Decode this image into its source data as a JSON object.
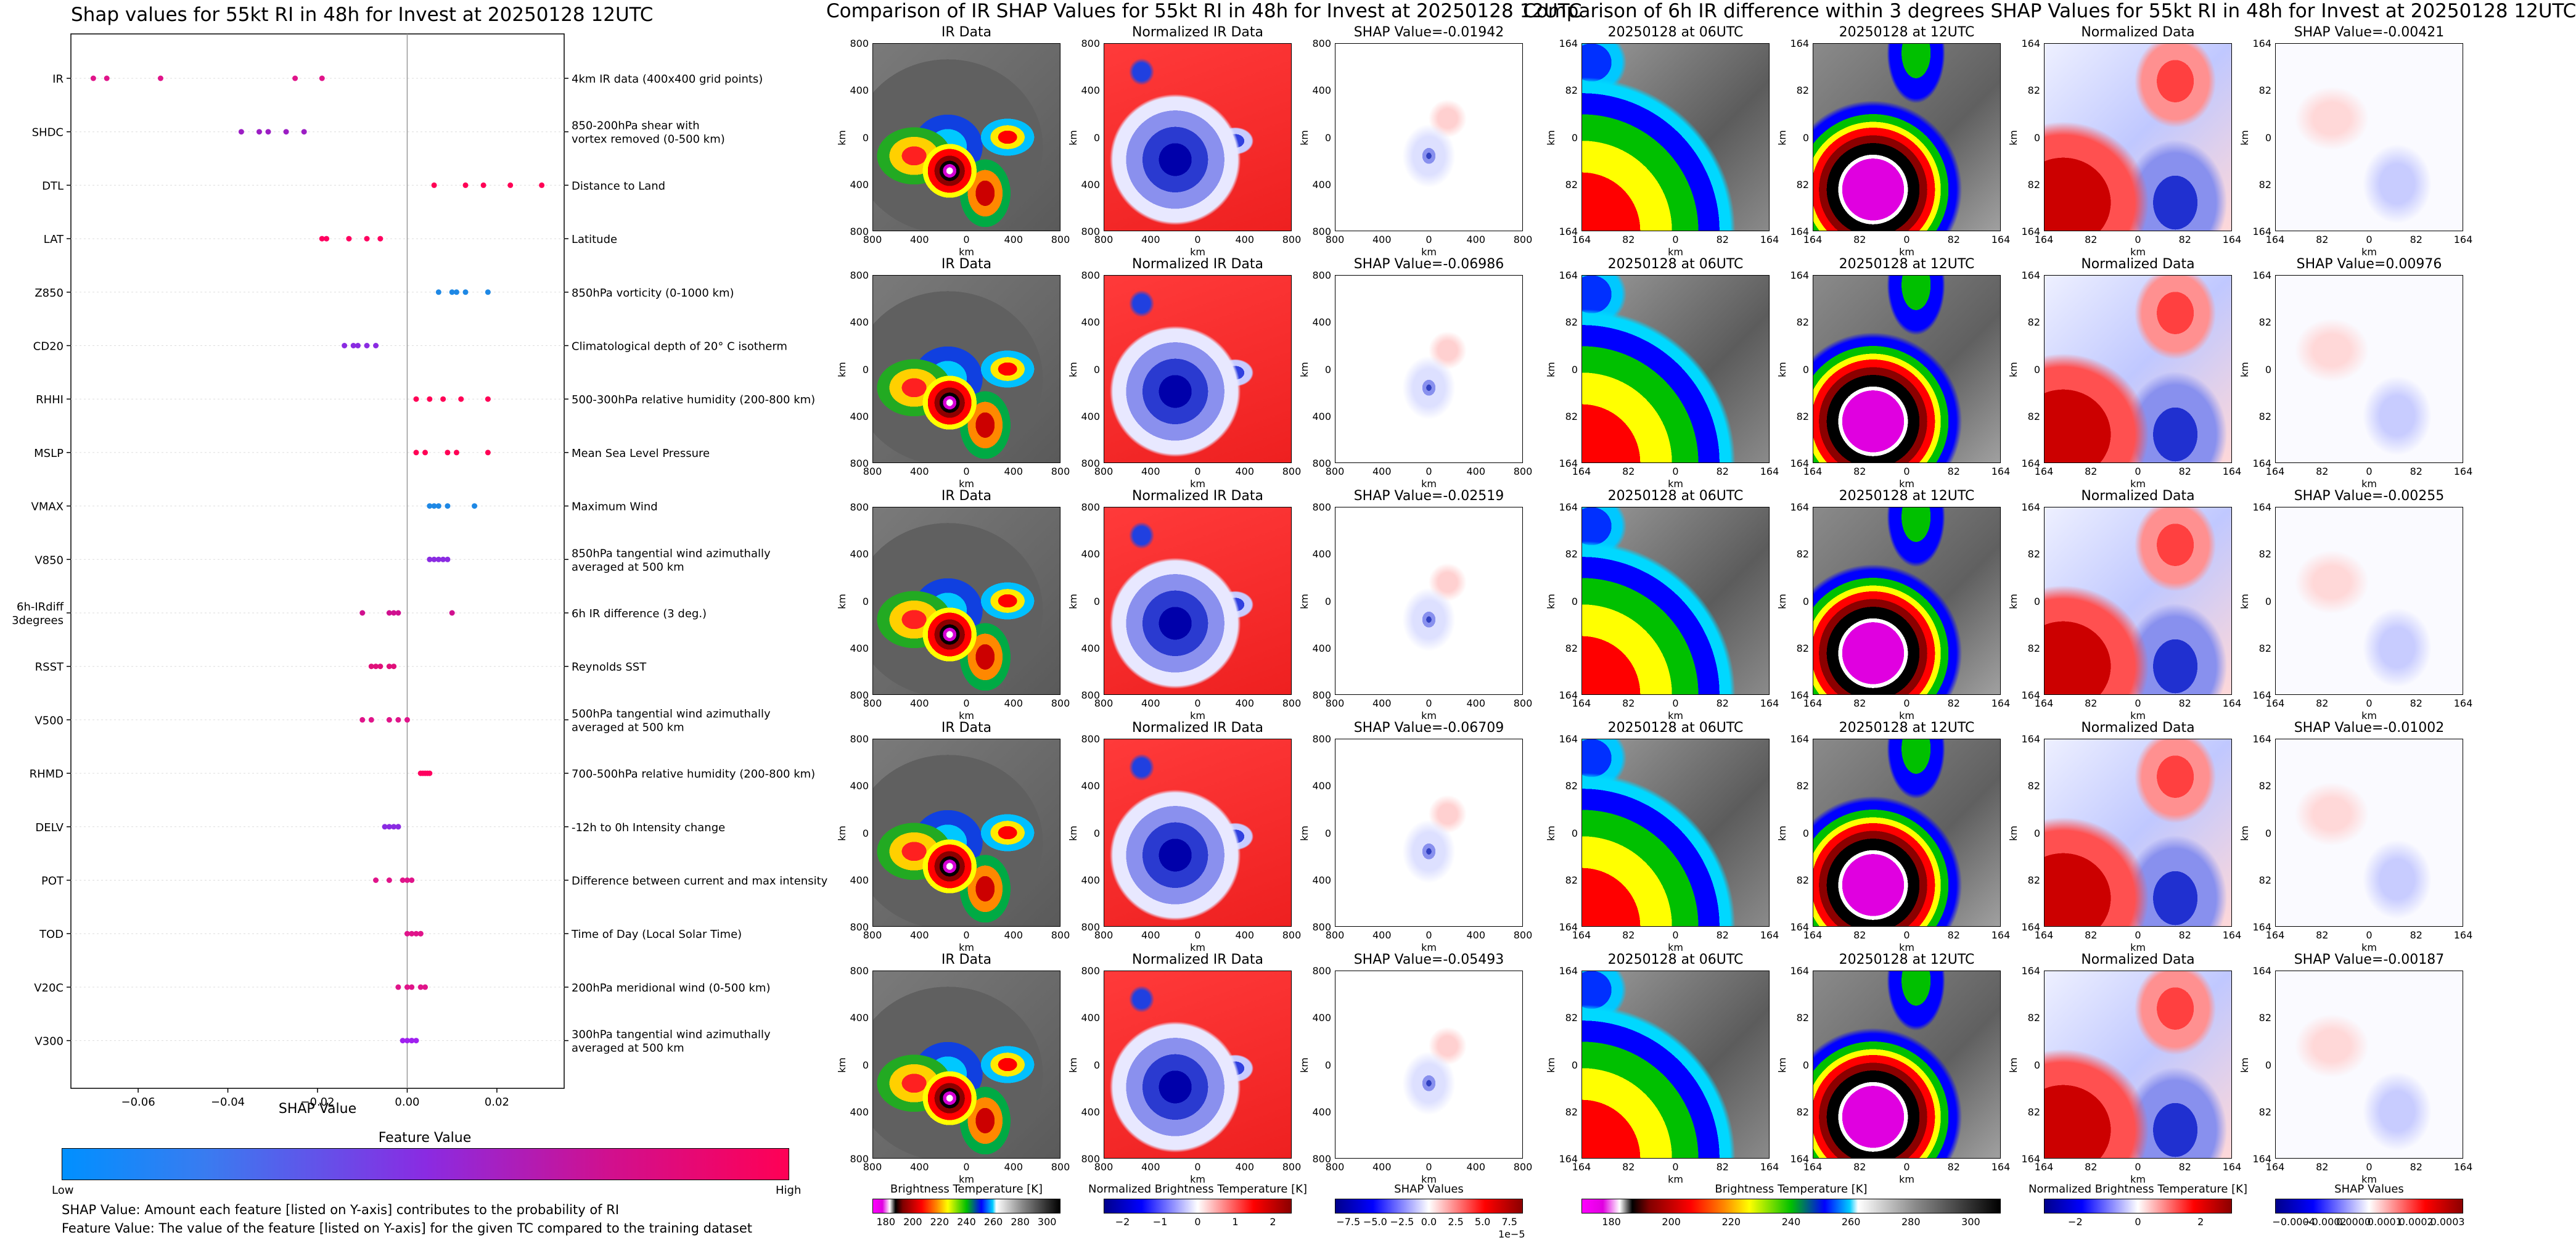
{
  "left_chart": {
    "title": "Shap values for 55kt RI in 48h for Invest at 20250128 12UTC",
    "xlabel": "SHAP Value",
    "colorbar_title": "Feature Value",
    "colorbar_low": "Low",
    "colorbar_high": "High",
    "note1": "SHAP Value: Amount each feature [listed on Y-axis] contributes to the probability of RI",
    "note2": "Feature Value: The value of the feature [listed on Y-axis] for the given TC compared to the training dataset"
  },
  "chart_data": {
    "type": "scatter",
    "title": "Shap values for 55kt RI in 48h for Invest at 20250128 12UTC",
    "xlabel": "SHAP Value",
    "xlim": [
      -0.075,
      0.035
    ],
    "xticks": [
      -0.06,
      -0.04,
      -0.02,
      0.0,
      0.02
    ],
    "xtick_labels": [
      "−0.06",
      "−0.04",
      "−0.02",
      "0.00",
      "0.02"
    ],
    "colors": {
      "low": "#1e88e5",
      "mid": "#a020f0",
      "high": "#ff0055"
    },
    "features": [
      {
        "name": "IR",
        "desc": "4km IR data (400x400 grid points)",
        "shap": [
          -0.07,
          -0.067,
          -0.055,
          -0.025,
          -0.019
        ],
        "colors": [
          "#e0148a",
          "#e0148a",
          "#e0148a",
          "#e0148a",
          "#e0148a"
        ]
      },
      {
        "name": "SHDC",
        "desc": "850-200hPa shear with\nvortex removed (0-500 km)",
        "shap": [
          -0.037,
          -0.033,
          -0.031,
          -0.027,
          -0.023
        ],
        "colors": [
          "#9c1ec4",
          "#9c1ec4",
          "#9c1ec4",
          "#9c1ec4",
          "#9c1ec4"
        ]
      },
      {
        "name": "DTL",
        "desc": "Distance to Land",
        "shap": [
          0.006,
          0.013,
          0.017,
          0.023,
          0.03
        ],
        "colors": [
          "#ff0055",
          "#ff0055",
          "#ff0055",
          "#ff0055",
          "#ff0055"
        ]
      },
      {
        "name": "LAT",
        "desc": "Latitude",
        "shap": [
          -0.019,
          -0.018,
          -0.013,
          -0.009,
          -0.006
        ],
        "colors": [
          "#ff0060",
          "#ff0060",
          "#ff0060",
          "#ff0060",
          "#ff0060"
        ]
      },
      {
        "name": "Z850",
        "desc": "850hPa vorticity (0-1000 km)",
        "shap": [
          0.007,
          0.01,
          0.011,
          0.013,
          0.018
        ],
        "colors": [
          "#1e88e5",
          "#1e88e5",
          "#1e88e5",
          "#1e88e5",
          "#1e88e5"
        ]
      },
      {
        "name": "CD20",
        "desc": "Climatological depth of 20° C isotherm",
        "shap": [
          -0.014,
          -0.012,
          -0.011,
          -0.009,
          -0.007
        ],
        "colors": [
          "#8a2be2",
          "#8a2be2",
          "#8a2be2",
          "#8a2be2",
          "#8a2be2"
        ]
      },
      {
        "name": "RHHI",
        "desc": "500-300hPa relative humidity (200-800 km)",
        "shap": [
          0.002,
          0.005,
          0.008,
          0.012,
          0.018
        ],
        "colors": [
          "#ff0055",
          "#ff0055",
          "#ff0055",
          "#ff0055",
          "#ff0055"
        ]
      },
      {
        "name": "MSLP",
        "desc": "Mean Sea Level Pressure",
        "shap": [
          0.002,
          0.004,
          0.009,
          0.011,
          0.018
        ],
        "colors": [
          "#ff0055",
          "#ff0055",
          "#ff0055",
          "#ff0055",
          "#ff0055"
        ]
      },
      {
        "name": "VMAX",
        "desc": "Maximum Wind",
        "shap": [
          0.005,
          0.006,
          0.007,
          0.009,
          0.015
        ],
        "colors": [
          "#1e88e5",
          "#1e88e5",
          "#1e88e5",
          "#1e88e5",
          "#1e88e5"
        ]
      },
      {
        "name": "V850",
        "desc": "850hPa tangential wind azimuthally\naveraged at 500 km",
        "shap": [
          0.005,
          0.006,
          0.007,
          0.008,
          0.009
        ],
        "colors": [
          "#8a2be2",
          "#8a2be2",
          "#8a2be2",
          "#8a2be2",
          "#8a2be2"
        ]
      },
      {
        "name": "6h-IRdiff\n3degrees",
        "desc": "6h IR difference (3 deg.)",
        "shap": [
          -0.01,
          -0.004,
          -0.003,
          -0.002,
          0.01
        ],
        "colors": [
          "#d0108f",
          "#d0108f",
          "#d0108f",
          "#d0108f",
          "#d0108f"
        ]
      },
      {
        "name": "RSST",
        "desc": "Reynolds SST",
        "shap": [
          -0.008,
          -0.007,
          -0.006,
          -0.004,
          -0.003
        ],
        "colors": [
          "#e0107a",
          "#e0107a",
          "#e0107a",
          "#e0107a",
          "#e0107a"
        ]
      },
      {
        "name": "V500",
        "desc": "500hPa tangential wind azimuthally\naveraged at 500 km",
        "shap": [
          -0.01,
          -0.008,
          -0.004,
          -0.002,
          0.0
        ],
        "colors": [
          "#e0148a",
          "#e0148a",
          "#e0148a",
          "#e0148a",
          "#e0148a"
        ]
      },
      {
        "name": "RHMD",
        "desc": "700-500hPa relative humidity (200-800 km)",
        "shap": [
          0.003,
          0.0035,
          0.004,
          0.0045,
          0.005
        ],
        "colors": [
          "#ff0060",
          "#ff0060",
          "#ff0060",
          "#ff0060",
          "#ff0060"
        ]
      },
      {
        "name": "DELV",
        "desc": "-12h to 0h Intensity change",
        "shap": [
          -0.005,
          -0.004,
          -0.003,
          -0.002,
          -0.002
        ],
        "colors": [
          "#8a2be2",
          "#8a2be2",
          "#8a2be2",
          "#8a2be2",
          "#8a2be2"
        ]
      },
      {
        "name": "POT",
        "desc": "Difference between current and max intensity",
        "shap": [
          -0.007,
          -0.004,
          -0.001,
          0.0,
          0.001
        ],
        "colors": [
          "#e0148a",
          "#e0148a",
          "#e0148a",
          "#e0148a",
          "#e0148a"
        ]
      },
      {
        "name": "TOD",
        "desc": "Time of Day (Local Solar Time)",
        "shap": [
          0.0,
          0.001,
          0.002,
          0.003,
          0.003
        ],
        "colors": [
          "#e0148a",
          "#e0148a",
          "#e0148a",
          "#e0148a",
          "#e0148a"
        ]
      },
      {
        "name": "V20C",
        "desc": "200hPa meridional wind (0-500 km)",
        "shap": [
          -0.002,
          0.0,
          0.001,
          0.003,
          0.004
        ],
        "colors": [
          "#e0148a",
          "#e0148a",
          "#e0148a",
          "#e0148a",
          "#e0148a"
        ]
      },
      {
        "name": "V300",
        "desc": "300hPa tangential wind azimuthally\naveraged at 500 km",
        "shap": [
          -0.001,
          0.0,
          0.001,
          0.001,
          0.002
        ],
        "colors": [
          "#a020f0",
          "#a020f0",
          "#a020f0",
          "#a020f0",
          "#a020f0"
        ]
      }
    ]
  },
  "ir_figure": {
    "title": "Comparison of IR SHAP Values for 55kt RI in 48h for Invest at 20250128 12UTC",
    "col_titles": [
      "IR Data",
      "Normalized IR Data"
    ],
    "shap_titles": [
      "SHAP Value=-0.01942",
      "SHAP Value=-0.06986",
      "SHAP Value=-0.02519",
      "SHAP Value=-0.06709",
      "SHAP Value=-0.05493"
    ],
    "axis_label": "km",
    "ticks": [
      "800",
      "400",
      "0",
      "400",
      "800"
    ],
    "cbar_labels": [
      "Brightness Temperature [K]",
      "Normalized Brightness Temperature [K]",
      "SHAP Values"
    ],
    "cbar1_ticks": [
      "180",
      "200",
      "220",
      "240",
      "260",
      "280",
      "300"
    ],
    "cbar2_ticks": [
      "−2",
      "−1",
      "0",
      "1",
      "2"
    ],
    "cbar3_ticks": [
      "−7.5",
      "−5.0",
      "−2.5",
      "0.0",
      "2.5",
      "5.0",
      "7.5"
    ],
    "cbar3_exponent": "1e−5"
  },
  "diff_figure": {
    "title": "Comparison of 6h IR difference within 3 degrees SHAP Values for 55kt RI in 48h for Invest at 20250128 12UTC",
    "col_titles": [
      "20250128 at 06UTC",
      "20250128 at 12UTC",
      "Normalized Data"
    ],
    "shap_titles": [
      "SHAP Value=-0.00421",
      "SHAP Value=0.00976",
      "SHAP Value=-0.00255",
      "SHAP Value=-0.01002",
      "SHAP Value=-0.00187"
    ],
    "axis_label": "km",
    "ticks": [
      "164",
      "82",
      "0",
      "82",
      "164"
    ],
    "cbar_labels": [
      "Brightness Temperature [K]",
      "Normalized Brightness Temperature [K]",
      "SHAP Values"
    ],
    "cbar1_ticks": [
      "180",
      "200",
      "220",
      "240",
      "260",
      "280",
      "300"
    ],
    "cbar2_ticks": [
      "−2",
      "0",
      "2"
    ],
    "cbar3_ticks": [
      "−0.0004",
      "−0.0002",
      "0.0000",
      "0.0001",
      "0.0002",
      "0.0003"
    ]
  }
}
